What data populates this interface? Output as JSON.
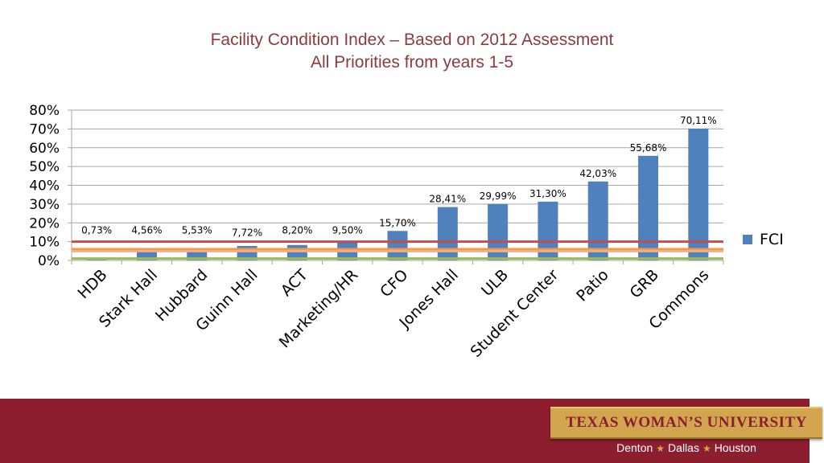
{
  "title": {
    "line1": "Facility Condition Index – Based on 2012 Assessment",
    "line2": "All Priorities from years 1-5"
  },
  "chart_data": {
    "type": "bar",
    "title": "Facility Condition Index – Based on 2012 Assessment / All Priorities from years 1-5",
    "xlabel": "",
    "ylabel": "",
    "ylim": [
      0,
      0.8
    ],
    "yticks": [
      0,
      0.1,
      0.2,
      0.3,
      0.4,
      0.5,
      0.6,
      0.7,
      0.8
    ],
    "ytick_labels": [
      "0%",
      "10%",
      "20%",
      "30%",
      "40%",
      "50%",
      "60%",
      "70%",
      "80%"
    ],
    "grid": true,
    "legend": {
      "position": "right",
      "entries": [
        "FCI"
      ]
    },
    "categories": [
      "HDB",
      "Stark Hall",
      "Hubbard",
      "Guinn Hall",
      "ACT",
      "Marketing/HR",
      "CFO",
      "Jones Hall",
      "ULB",
      "Student Center",
      "Patio",
      "GRB",
      "Commons"
    ],
    "series": [
      {
        "name": "FCI",
        "color": "#4f81bd",
        "values": [
          0.0073,
          0.0456,
          0.0553,
          0.0772,
          0.082,
          0.095,
          0.157,
          0.2841,
          0.2999,
          0.313,
          0.4203,
          0.5568,
          0.7011
        ],
        "data_labels": [
          "0,73%",
          "4,56%",
          "5,53%",
          "7,72%",
          "8,20%",
          "9,50%",
          "15,70%",
          "28,41%",
          "29,99%",
          "31,30%",
          "42,03%",
          "55,68%",
          "70,11%"
        ]
      }
    ],
    "reference_lines": [
      {
        "value": 0.1,
        "color": "#c0504d"
      },
      {
        "value": 0.06,
        "color": "#f79646"
      },
      {
        "value": 0.05,
        "color": "#eeb080"
      },
      {
        "value": 0.01,
        "color": "#9bbb59"
      }
    ]
  },
  "footer": {
    "university": "TEXAS WOMAN’S UNIVERSITY",
    "campuses": [
      "Denton",
      "Dallas",
      "Houston"
    ],
    "star": "★"
  }
}
